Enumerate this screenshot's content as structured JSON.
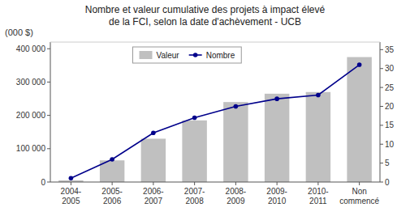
{
  "chart_data": {
    "type": "bar",
    "title": "Nombre et valeur cumulative des projets à impact élevé\nde la FCI, selon la date d'achèvement - UCB",
    "ylabel": "(000 $)",
    "categories": [
      "2004-\n2005",
      "2005-\n2006",
      "2006-\n2007",
      "2007-\n2008",
      "2008-\n2009",
      "2009-\n2010",
      "2010-\n2011",
      "Non\ncommencé"
    ],
    "series": [
      {
        "name": "Valeur",
        "color": "#c0c0c0",
        "values": [
          5000,
          65000,
          130000,
          185000,
          240000,
          265000,
          270000,
          375000
        ]
      },
      {
        "name": "Nombre",
        "type": "line",
        "axis": "y2",
        "marker": "circle",
        "color": "#00008B",
        "values": [
          1,
          6,
          13,
          17,
          20,
          22,
          23,
          31
        ]
      }
    ],
    "ylim": [
      0,
      420000
    ],
    "yticks": [
      0,
      {
        "value": 100000,
        "label": "100 000"
      },
      {
        "value": 200000,
        "label": "200 000"
      },
      {
        "value": 300000,
        "label": "300 000"
      },
      {
        "value": 400000,
        "label": "400 000"
      }
    ],
    "y2lim": [
      0,
      37
    ],
    "y2ticks": [
      0,
      5,
      10,
      15,
      20,
      25,
      30,
      35
    ],
    "grid": false,
    "legend": "upper left"
  }
}
